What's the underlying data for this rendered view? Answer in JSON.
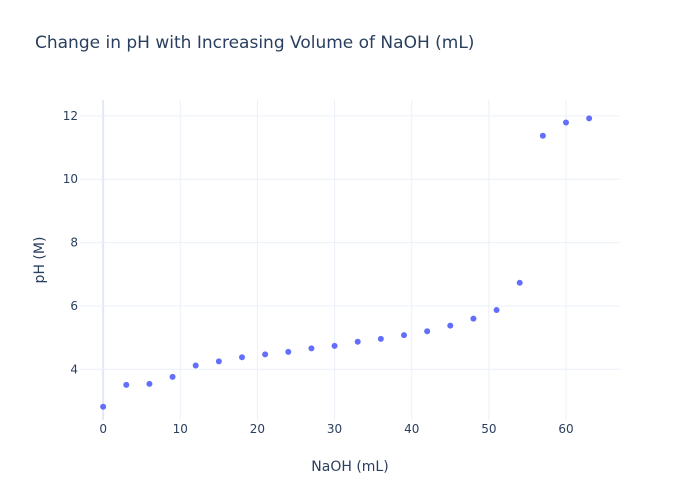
{
  "chart_data": {
    "type": "scatter",
    "title": "Change in pH with Increasing Volume of NaOH (mL)",
    "xlabel": "NaOH (mL)",
    "ylabel": "pH (M)",
    "xlim": [
      -3,
      67
    ],
    "ylim": [
      2.4,
      12.5
    ],
    "x_ticks": [
      0,
      10,
      20,
      30,
      40,
      50,
      60
    ],
    "y_ticks": [
      4,
      6,
      8,
      10,
      12
    ],
    "grid": true,
    "marker_color": "#636efa",
    "x": [
      0,
      3,
      6,
      9,
      12,
      15,
      18,
      21,
      24,
      27,
      30,
      33,
      36,
      39,
      42,
      45,
      48,
      51,
      54,
      57,
      60,
      63
    ],
    "y": [
      2.82,
      3.51,
      3.54,
      3.76,
      4.12,
      4.25,
      4.38,
      4.47,
      4.55,
      4.66,
      4.74,
      4.87,
      4.96,
      5.08,
      5.2,
      5.38,
      5.6,
      5.87,
      6.73,
      11.37,
      11.79,
      11.92
    ]
  }
}
